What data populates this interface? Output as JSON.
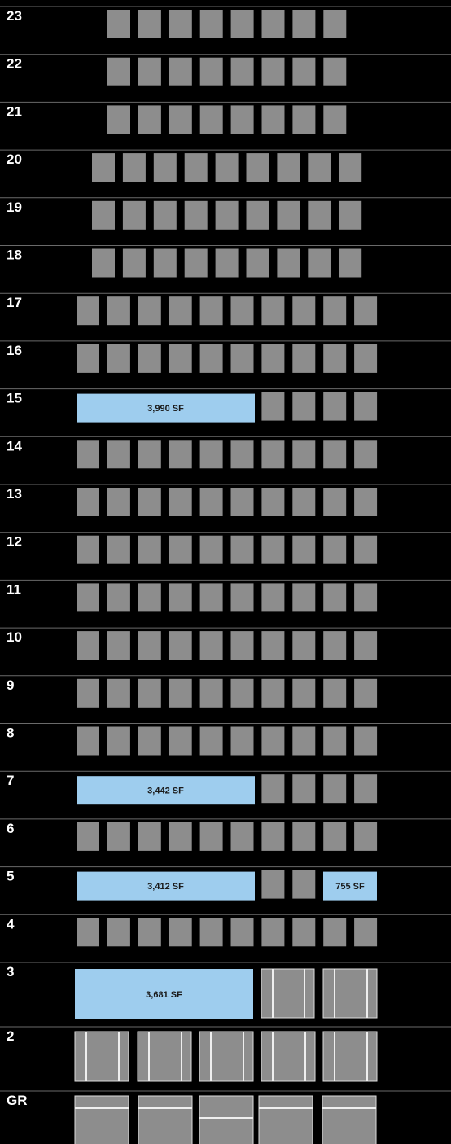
{
  "floors": [
    {
      "label": "23"
    },
    {
      "label": "22"
    },
    {
      "label": "21"
    },
    {
      "label": "20"
    },
    {
      "label": "19"
    },
    {
      "label": "18"
    },
    {
      "label": "17"
    },
    {
      "label": "16"
    },
    {
      "label": "15",
      "spaces": [
        {
          "label": "3,990 SF"
        }
      ]
    },
    {
      "label": "14"
    },
    {
      "label": "13"
    },
    {
      "label": "12"
    },
    {
      "label": "11"
    },
    {
      "label": "10"
    },
    {
      "label": "9"
    },
    {
      "label": "8"
    },
    {
      "label": "7",
      "spaces": [
        {
          "label": "3,442 SF"
        }
      ]
    },
    {
      "label": "6"
    },
    {
      "label": "5",
      "spaces": [
        {
          "label": "3,412 SF"
        },
        {
          "label": "755 SF"
        }
      ]
    },
    {
      "label": "4"
    },
    {
      "label": "3",
      "spaces": [
        {
          "label": "3,681 SF"
        }
      ]
    },
    {
      "label": "2"
    },
    {
      "label": "GR"
    }
  ]
}
